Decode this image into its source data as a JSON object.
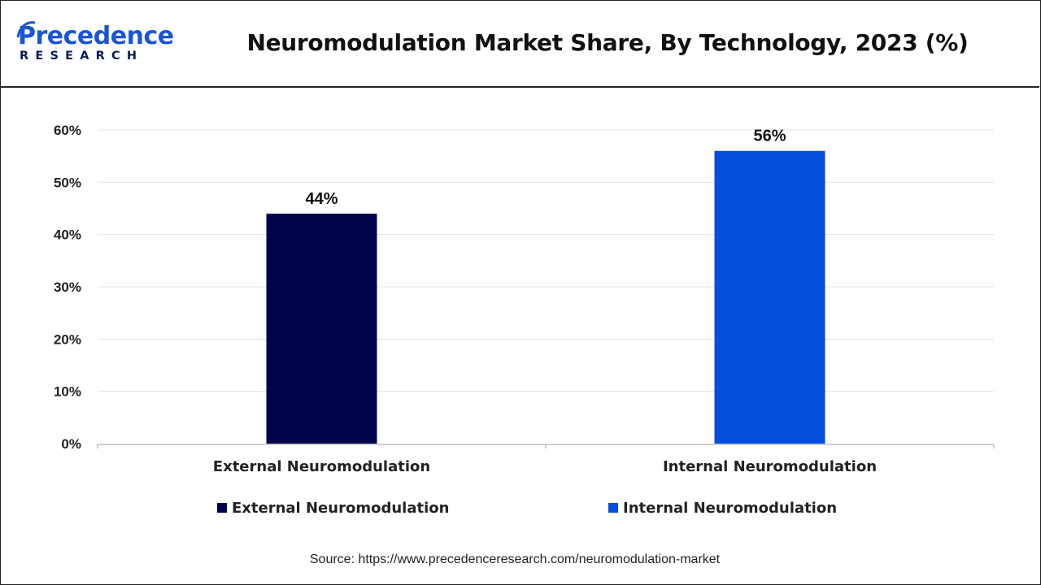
{
  "header": {
    "logo_main": "Precedence",
    "logo_sub": "RESEARCH",
    "title": "Neuromodulation Market Share, By Technology, 2023 (%)"
  },
  "source": "Source: https://www.precedenceresearch.com/neuromodulation-market",
  "colors": {
    "external": "#03034d",
    "internal": "#034fdb",
    "brand_blue": "#1a55d4",
    "brand_navy": "#0a1a5c"
  },
  "chart_data": {
    "type": "bar",
    "title": "Neuromodulation Market Share, By Technology, 2023 (%)",
    "categories": [
      "External Neuromodulation",
      "Internal Neuromodulation"
    ],
    "values": [
      44,
      56
    ],
    "data_labels": [
      "44%",
      "56%"
    ],
    "bar_colors": [
      "#03034d",
      "#034fdb"
    ],
    "ylim": [
      0,
      60
    ],
    "yticks": [
      0,
      10,
      20,
      30,
      40,
      50,
      60
    ],
    "ytick_labels": [
      "0%",
      "10%",
      "20%",
      "30%",
      "40%",
      "50%",
      "60%"
    ],
    "grid": true,
    "legend": {
      "position": "bottom",
      "entries": [
        {
          "label": "External Neuromodulation",
          "color": "#03034d"
        },
        {
          "label": "Internal Neuromodulation",
          "color": "#034fdb"
        }
      ]
    }
  }
}
